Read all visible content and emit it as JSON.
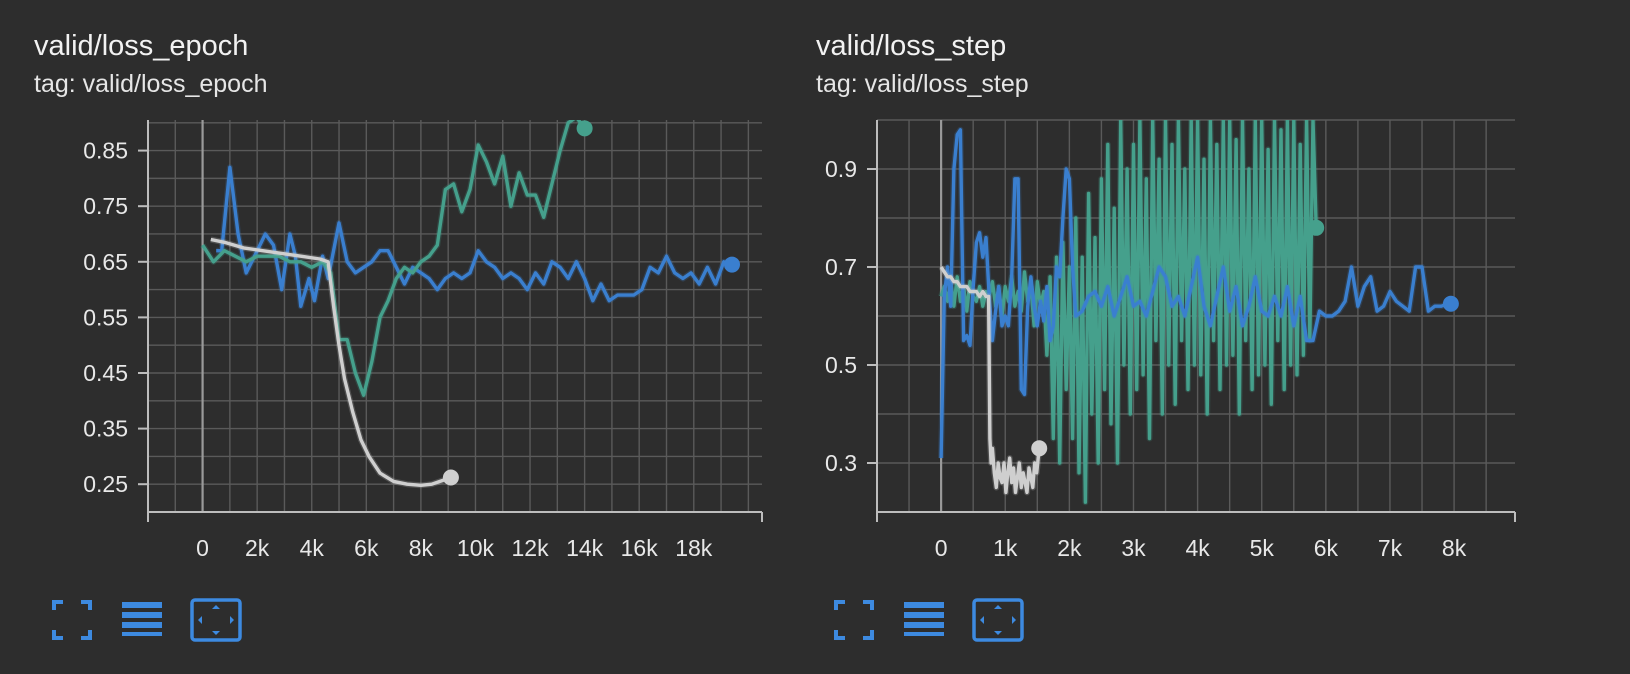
{
  "colors": {
    "background": "#2d2d2d",
    "grid": "#5a5a5a",
    "axis": "#bdbdbd",
    "tick_text": "#e8e8e8",
    "series_blue": "#3a7fcf",
    "series_teal": "#45a08c",
    "series_gray": "#cfcfcf",
    "icon_blue": "#3d8ae0"
  },
  "charts": [
    {
      "id": "loss-epoch",
      "title": "valid/loss_epoch",
      "tag": "tag: valid/loss_epoch",
      "toolbar": {
        "icons": [
          "fullscreen-icon",
          "data-table-icon",
          "fit-domain-icon"
        ]
      },
      "chart_data": {
        "type": "line",
        "xlim": [
          -2000,
          20500
        ],
        "ylim": [
          0.2,
          0.905
        ],
        "xticks": [
          0,
          2000,
          4000,
          6000,
          8000,
          10000,
          12000,
          14000,
          16000,
          18000
        ],
        "xtick_labels": [
          "0",
          "2k",
          "4k",
          "6k",
          "8k",
          "10k",
          "12k",
          "14k",
          "16k",
          "18k"
        ],
        "yticks": [
          0.25,
          0.35,
          0.45,
          0.55,
          0.65,
          0.75,
          0.85
        ],
        "ytick_labels": [
          "0.25",
          "0.35",
          "0.45",
          "0.55",
          "0.65",
          "0.75",
          "0.85"
        ],
        "grid": true,
        "series": [
          {
            "color": "#3a7fcf",
            "x": [
              500,
              700,
              1000,
              1300,
              1600,
              2000,
              2300,
              2600,
              2900,
              3200,
              3400,
              3600,
              3900,
              4100,
              4400,
              4600,
              5000,
              5300,
              5600,
              5900,
              6200,
              6500,
              6800,
              7100,
              7400,
              7700,
              8000,
              8300,
              8600,
              8900,
              9200,
              9500,
              9800,
              10100,
              10400,
              10700,
              11000,
              11300,
              11600,
              11900,
              12200,
              12500,
              12800,
              13100,
              13400,
              13700,
              14000,
              14300,
              14600,
              14900,
              15200,
              15500,
              15800,
              16100,
              16400,
              16700,
              17000,
              17300,
              17600,
              17900,
              18200,
              18500,
              18800,
              19100,
              19400
            ],
            "y": [
              0.67,
              0.67,
              0.82,
              0.7,
              0.63,
              0.67,
              0.7,
              0.68,
              0.6,
              0.7,
              0.66,
              0.57,
              0.62,
              0.58,
              0.66,
              0.62,
              0.72,
              0.65,
              0.63,
              0.64,
              0.65,
              0.67,
              0.67,
              0.64,
              0.61,
              0.64,
              0.63,
              0.62,
              0.6,
              0.62,
              0.63,
              0.62,
              0.63,
              0.67,
              0.65,
              0.64,
              0.62,
              0.63,
              0.62,
              0.6,
              0.63,
              0.61,
              0.65,
              0.64,
              0.62,
              0.65,
              0.62,
              0.58,
              0.61,
              0.58,
              0.59,
              0.59,
              0.59,
              0.6,
              0.64,
              0.63,
              0.66,
              0.63,
              0.62,
              0.63,
              0.61,
              0.64,
              0.61,
              0.65,
              0.645
            ]
          },
          {
            "color": "#45a08c",
            "x": [
              0,
              400,
              800,
              1200,
              1600,
              2000,
              2400,
              2800,
              3200,
              3600,
              4000,
              4400,
              4700,
              5000,
              5300,
              5600,
              5900,
              6200,
              6500,
              6800,
              7100,
              7400,
              7700,
              8000,
              8300,
              8600,
              8900,
              9200,
              9500,
              9800,
              10100,
              10400,
              10700,
              11000,
              11300,
              11600,
              11900,
              12200,
              12500,
              12800,
              13100,
              13400,
              13700,
              14000
            ],
            "y": [
              0.68,
              0.65,
              0.67,
              0.66,
              0.65,
              0.66,
              0.66,
              0.66,
              0.65,
              0.65,
              0.64,
              0.65,
              0.63,
              0.51,
              0.51,
              0.45,
              0.41,
              0.47,
              0.55,
              0.58,
              0.62,
              0.64,
              0.63,
              0.65,
              0.66,
              0.68,
              0.78,
              0.79,
              0.74,
              0.78,
              0.86,
              0.83,
              0.79,
              0.84,
              0.75,
              0.81,
              0.77,
              0.77,
              0.73,
              0.79,
              0.85,
              0.9,
              0.91,
              0.89
            ]
          },
          {
            "color": "#cfcfcf",
            "x": [
              300,
              800,
              1500,
              2200,
              2900,
              3600,
              4300,
              4600,
              4800,
              5000,
              5200,
              5500,
              5800,
              6100,
              6500,
              7000,
              7500,
              8000,
              8400,
              8700,
              9100
            ],
            "y": [
              0.69,
              0.685,
              0.675,
              0.67,
              0.665,
              0.66,
              0.655,
              0.65,
              0.57,
              0.5,
              0.44,
              0.38,
              0.33,
              0.3,
              0.27,
              0.255,
              0.25,
              0.248,
              0.25,
              0.255,
              0.262
            ]
          }
        ]
      }
    },
    {
      "id": "loss-step",
      "title": "valid/loss_step",
      "tag": "tag: valid/loss_step",
      "toolbar": {
        "icons": [
          "fullscreen-icon",
          "data-table-icon",
          "fit-domain-icon"
        ]
      },
      "chart_data": {
        "type": "line",
        "xlim": [
          -1000,
          8950
        ],
        "ylim": [
          0.2,
          1.0
        ],
        "xticks": [
          0,
          1000,
          2000,
          3000,
          4000,
          5000,
          6000,
          7000,
          8000
        ],
        "xtick_labels": [
          "0",
          "1k",
          "2k",
          "3k",
          "4k",
          "5k",
          "6k",
          "7k",
          "8k"
        ],
        "yticks": [
          0.3,
          0.5,
          0.7,
          0.9
        ],
        "ytick_labels": [
          "0.3",
          "0.5",
          "0.7",
          "0.9"
        ],
        "grid": true,
        "series": [
          {
            "color": "#45a08c",
            "x": [
              0,
              50,
              100,
              150,
              200,
              250,
              300,
              350,
              400,
              450,
              500,
              550,
              600,
              650,
              700,
              750,
              800,
              850,
              900,
              950,
              1000,
              1050,
              1100,
              1150,
              1200,
              1250,
              1300,
              1350,
              1400,
              1450,
              1500,
              1550,
              1600,
              1650,
              1700,
              1750,
              1800,
              1850,
              1900,
              1950,
              2000,
              2050,
              2100,
              2150,
              2200,
              2250,
              2300,
              2350,
              2400,
              2450,
              2500,
              2550,
              2600,
              2650,
              2700,
              2750,
              2800,
              2850,
              2900,
              2950,
              3000,
              3050,
              3100,
              3150,
              3200,
              3250,
              3300,
              3350,
              3400,
              3450,
              3500,
              3550,
              3600,
              3650,
              3700,
              3750,
              3800,
              3850,
              3900,
              3950,
              4000,
              4050,
              4100,
              4150,
              4200,
              4250,
              4300,
              4350,
              4400,
              4450,
              4500,
              4550,
              4600,
              4650,
              4700,
              4750,
              4800,
              4850,
              4900,
              4950,
              5000,
              5050,
              5100,
              5150,
              5200,
              5250,
              5300,
              5350,
              5400,
              5450,
              5500,
              5550,
              5600,
              5650,
              5700,
              5750,
              5800,
              5850
            ],
            "y": [
              0.64,
              0.66,
              0.63,
              0.67,
              0.62,
              0.68,
              0.63,
              0.66,
              0.61,
              0.67,
              0.64,
              0.63,
              0.66,
              0.62,
              0.65,
              0.64,
              0.67,
              0.62,
              0.66,
              0.6,
              0.66,
              0.63,
              0.68,
              0.62,
              0.65,
              0.61,
              0.69,
              0.63,
              0.66,
              0.58,
              0.67,
              0.62,
              0.65,
              0.52,
              0.68,
              0.35,
              0.72,
              0.3,
              0.75,
              0.45,
              0.7,
              0.35,
              0.8,
              0.28,
              0.72,
              0.22,
              0.85,
              0.4,
              0.76,
              0.3,
              0.88,
              0.45,
              0.95,
              0.38,
              0.82,
              0.3,
              1.0,
              0.5,
              0.9,
              0.4,
              0.95,
              0.45,
              1.0,
              0.48,
              0.88,
              0.35,
              1.0,
              0.55,
              0.92,
              0.4,
              1.0,
              0.5,
              0.95,
              0.42,
              1.0,
              0.55,
              0.9,
              0.45,
              1.0,
              0.5,
              1.0,
              0.48,
              0.92,
              0.4,
              1.0,
              0.55,
              0.95,
              0.45,
              1.0,
              0.5,
              1.0,
              0.52,
              0.96,
              0.4,
              1.0,
              0.55,
              0.9,
              0.45,
              1.0,
              0.48,
              1.0,
              0.5,
              0.94,
              0.42,
              1.0,
              0.55,
              0.98,
              0.45,
              1.0,
              0.5,
              1.0,
              0.48,
              0.95,
              0.52,
              1.0,
              0.55,
              1.0,
              0.78
            ]
          },
          {
            "color": "#3a7fcf",
            "x": [
              0,
              50,
              100,
              150,
              200,
              250,
              300,
              350,
              400,
              450,
              500,
              550,
              600,
              650,
              700,
              750,
              800,
              850,
              900,
              950,
              1000,
              1050,
              1100,
              1150,
              1200,
              1250,
              1300,
              1350,
              1400,
              1450,
              1500,
              1550,
              1600,
              1650,
              1700,
              1750,
              1800,
              1850,
              1900,
              1950,
              2000,
              2050,
              2100,
              2200,
              2300,
              2400,
              2500,
              2600,
              2700,
              2800,
              2900,
              3000,
              3100,
              3200,
              3300,
              3400,
              3500,
              3600,
              3700,
              3800,
              3900,
              4000,
              4100,
              4200,
              4300,
              4400,
              4500,
              4600,
              4700,
              4800,
              4900,
              5000,
              5100,
              5200,
              5300,
              5400,
              5500,
              5600,
              5700,
              5800,
              5900,
              6000,
              6100,
              6200,
              6300,
              6400,
              6500,
              6600,
              6700,
              6800,
              6900,
              7000,
              7100,
              7200,
              7300,
              7400,
              7500,
              7600,
              7700,
              7800,
              7900,
              7950
            ],
            "y": [
              0.31,
              0.64,
              0.7,
              0.62,
              0.9,
              0.97,
              0.98,
              0.55,
              0.56,
              0.54,
              0.66,
              0.75,
              0.77,
              0.72,
              0.76,
              0.64,
              0.55,
              0.61,
              0.66,
              0.58,
              0.6,
              0.58,
              0.68,
              0.88,
              0.88,
              0.45,
              0.44,
              0.62,
              0.68,
              0.62,
              0.58,
              0.63,
              0.59,
              0.66,
              0.55,
              0.58,
              0.7,
              0.68,
              0.8,
              0.9,
              0.88,
              0.7,
              0.6,
              0.61,
              0.64,
              0.65,
              0.62,
              0.66,
              0.6,
              0.64,
              0.68,
              0.62,
              0.63,
              0.6,
              0.65,
              0.7,
              0.68,
              0.62,
              0.64,
              0.6,
              0.66,
              0.72,
              0.62,
              0.58,
              0.64,
              0.7,
              0.61,
              0.66,
              0.58,
              0.62,
              0.68,
              0.61,
              0.6,
              0.64,
              0.6,
              0.66,
              0.58,
              0.64,
              0.55,
              0.55,
              0.61,
              0.6,
              0.6,
              0.61,
              0.63,
              0.7,
              0.62,
              0.66,
              0.68,
              0.61,
              0.62,
              0.65,
              0.63,
              0.62,
              0.61,
              0.7,
              0.7,
              0.61,
              0.62,
              0.62,
              0.625,
              0.625
            ]
          },
          {
            "color": "#cfcfcf",
            "x": [
              0,
              50,
              100,
              150,
              200,
              250,
              300,
              350,
              400,
              450,
              500,
              550,
              600,
              650,
              700,
              740,
              760,
              780,
              800,
              830,
              860,
              890,
              920,
              950,
              980,
              1010,
              1040,
              1070,
              1100,
              1130,
              1160,
              1190,
              1220,
              1250,
              1280,
              1310,
              1340,
              1370,
              1400,
              1430,
              1460,
              1490,
              1530
            ],
            "y": [
              0.7,
              0.69,
              0.68,
              0.68,
              0.67,
              0.67,
              0.66,
              0.66,
              0.66,
              0.65,
              0.65,
              0.65,
              0.64,
              0.65,
              0.64,
              0.64,
              0.35,
              0.3,
              0.33,
              0.28,
              0.25,
              0.3,
              0.27,
              0.26,
              0.3,
              0.24,
              0.28,
              0.31,
              0.26,
              0.29,
              0.24,
              0.27,
              0.3,
              0.25,
              0.28,
              0.26,
              0.24,
              0.29,
              0.27,
              0.25,
              0.3,
              0.28,
              0.33
            ]
          }
        ]
      }
    }
  ]
}
